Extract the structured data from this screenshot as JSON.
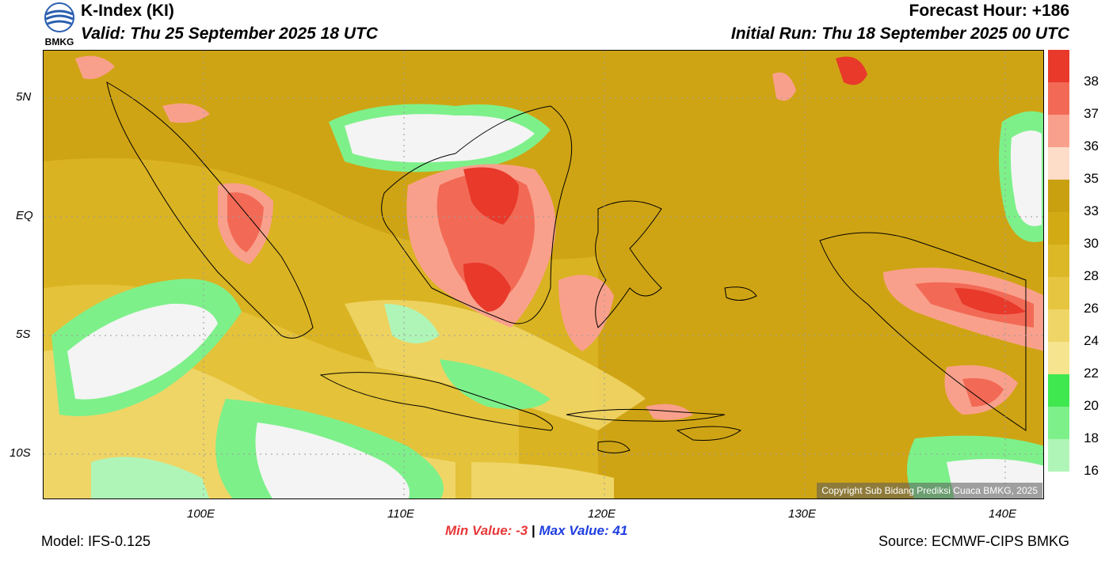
{
  "header": {
    "title": "K-Index (KI)",
    "valid": "Valid: Thu 25 September 2025 18 UTC",
    "forecast_hour": "Forecast Hour: +186",
    "initial_run": "Initial Run: Thu 18 September 2025 00 UTC",
    "logo_text": "BMKG"
  },
  "map": {
    "lat_ticks": [
      "5N",
      "EQ",
      "5S",
      "10S"
    ],
    "lon_ticks": [
      "100E",
      "110E",
      "120E",
      "130E",
      "140E"
    ],
    "copyright": "Copyright Sub Bidang Prediksi Cuaca BMKG, 2025"
  },
  "colorbar": {
    "labels": [
      "38",
      "37",
      "36",
      "35",
      "33",
      "30",
      "28",
      "26",
      "24",
      "22",
      "20",
      "18",
      "16"
    ],
    "colors": [
      "#e8392b",
      "#f26a55",
      "#f9a08c",
      "#fddcc8",
      "#c8a010",
      "#d2aa14",
      "#dcb726",
      "#e6c640",
      "#efd566",
      "#f6e48e",
      "#40e850",
      "#7ef08a",
      "#b0f5b8",
      "#ffffff"
    ]
  },
  "footer": {
    "model": "Model: IFS-0.125",
    "source": "Source: ECMWF-CIPS BMKG",
    "min_label": "Min Value:",
    "min_value": "-3",
    "separator": "|",
    "max_label": "Max Value:",
    "max_value": "41"
  }
}
